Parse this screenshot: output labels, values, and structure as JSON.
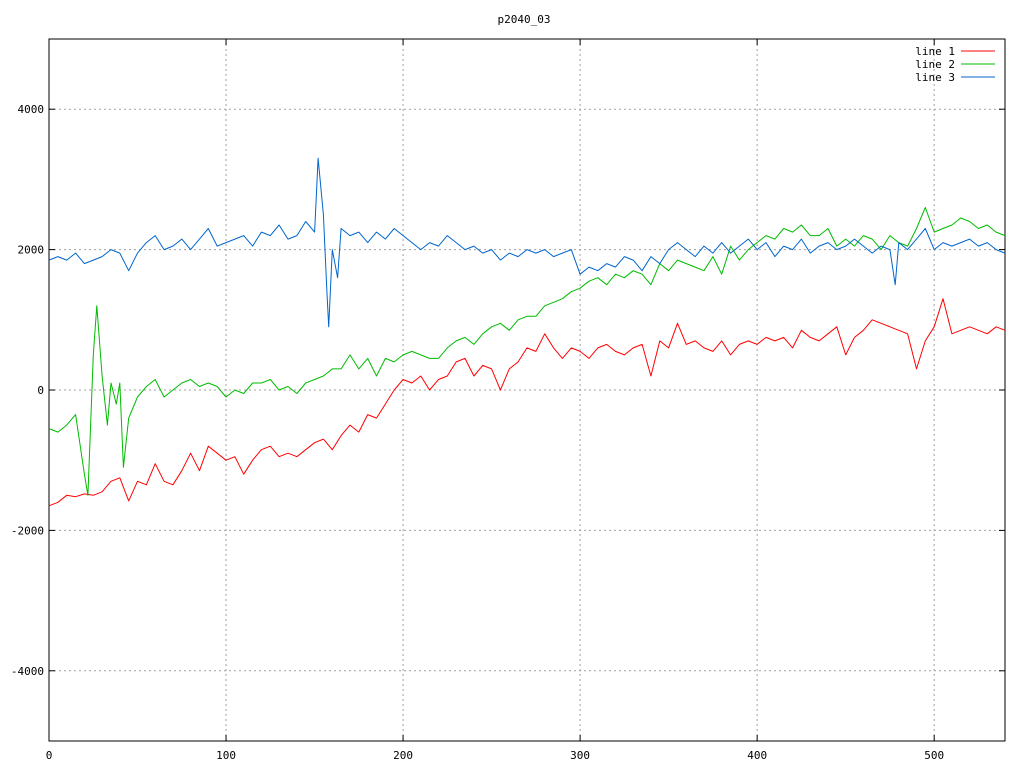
{
  "chart_data": {
    "type": "line",
    "title": "p2040_03",
    "xlabel": "",
    "ylabel": "",
    "xlim": [
      0,
      540
    ],
    "ylim": [
      -5000,
      5000
    ],
    "grid": true,
    "legend_placement": "top-right",
    "x_ticks": [
      0,
      100,
      200,
      300,
      400,
      500
    ],
    "y_ticks": [
      -4000,
      -2000,
      0,
      2000,
      4000
    ],
    "x_tick_labels": [
      "0",
      "100",
      "200",
      "300",
      "400",
      "500"
    ],
    "y_tick_labels": [
      "-4000",
      "-2000",
      "0",
      "2000",
      "4000"
    ],
    "series": [
      {
        "name": "line 1",
        "color": "#ff0000",
        "x": [
          0,
          5,
          10,
          15,
          20,
          25,
          30,
          35,
          40,
          45,
          50,
          55,
          60,
          65,
          70,
          75,
          80,
          85,
          90,
          95,
          100,
          105,
          110,
          115,
          120,
          125,
          130,
          135,
          140,
          145,
          150,
          155,
          160,
          165,
          170,
          175,
          180,
          185,
          190,
          195,
          200,
          205,
          210,
          215,
          220,
          225,
          230,
          235,
          240,
          245,
          250,
          255,
          260,
          265,
          270,
          275,
          280,
          285,
          290,
          295,
          300,
          305,
          310,
          315,
          320,
          325,
          330,
          335,
          340,
          345,
          350,
          355,
          360,
          365,
          370,
          375,
          380,
          385,
          390,
          395,
          400,
          405,
          410,
          415,
          420,
          425,
          430,
          435,
          440,
          445,
          450,
          455,
          460,
          465,
          470,
          475,
          480,
          485,
          490,
          495,
          500,
          505,
          510,
          515,
          520,
          525,
          530,
          535,
          540
        ],
        "y": [
          -1650,
          -1600,
          -1500,
          -1520,
          -1480,
          -1500,
          -1450,
          -1300,
          -1250,
          -1580,
          -1300,
          -1350,
          -1050,
          -1300,
          -1350,
          -1150,
          -900,
          -1150,
          -800,
          -900,
          -1000,
          -950,
          -1200,
          -1000,
          -850,
          -800,
          -950,
          -900,
          -950,
          -850,
          -750,
          -700,
          -850,
          -650,
          -500,
          -600,
          -350,
          -400,
          -200,
          0,
          150,
          100,
          200,
          0,
          150,
          200,
          400,
          450,
          200,
          350,
          300,
          0,
          300,
          400,
          600,
          550,
          800,
          600,
          450,
          600,
          550,
          450,
          600,
          650,
          550,
          500,
          600,
          650,
          200,
          700,
          600,
          950,
          650,
          700,
          600,
          550,
          700,
          500,
          650,
          700,
          650,
          750,
          700,
          750,
          600,
          850,
          750,
          700,
          800,
          900,
          500,
          750,
          850,
          1000,
          950,
          900,
          850,
          800,
          300,
          700,
          900,
          1300,
          800,
          850,
          900,
          850,
          800,
          900,
          850
        ]
      },
      {
        "name": "line 2",
        "color": "#00bb00",
        "x": [
          0,
          5,
          10,
          15,
          20,
          22,
          25,
          27,
          30,
          33,
          35,
          38,
          40,
          42,
          45,
          50,
          55,
          60,
          65,
          70,
          75,
          80,
          85,
          90,
          95,
          100,
          105,
          110,
          115,
          120,
          125,
          130,
          135,
          140,
          145,
          150,
          155,
          160,
          165,
          170,
          175,
          180,
          185,
          190,
          195,
          200,
          205,
          210,
          215,
          220,
          225,
          230,
          235,
          240,
          245,
          250,
          255,
          260,
          265,
          270,
          275,
          280,
          285,
          290,
          295,
          300,
          305,
          310,
          315,
          320,
          325,
          330,
          335,
          340,
          345,
          350,
          355,
          360,
          365,
          370,
          375,
          380,
          385,
          390,
          395,
          400,
          405,
          410,
          415,
          420,
          425,
          430,
          435,
          440,
          445,
          450,
          455,
          460,
          465,
          470,
          475,
          480,
          485,
          490,
          495,
          500,
          505,
          510,
          515,
          520,
          525,
          530,
          535,
          540
        ],
        "y": [
          -550,
          -600,
          -500,
          -350,
          -1200,
          -1500,
          500,
          1200,
          200,
          -500,
          100,
          -200,
          100,
          -1100,
          -400,
          -100,
          50,
          150,
          -100,
          0,
          100,
          150,
          50,
          100,
          50,
          -100,
          0,
          -50,
          100,
          100,
          150,
          0,
          50,
          -50,
          100,
          150,
          200,
          300,
          300,
          500,
          300,
          450,
          200,
          450,
          400,
          500,
          550,
          500,
          450,
          450,
          600,
          700,
          750,
          650,
          800,
          900,
          950,
          850,
          1000,
          1050,
          1050,
          1200,
          1250,
          1300,
          1400,
          1450,
          1550,
          1600,
          1500,
          1650,
          1600,
          1700,
          1650,
          1500,
          1800,
          1700,
          1850,
          1800,
          1750,
          1700,
          1900,
          1650,
          2050,
          1850,
          2000,
          2100,
          2200,
          2150,
          2300,
          2250,
          2350,
          2200,
          2200,
          2300,
          2050,
          2150,
          2050,
          2200,
          2150,
          2000,
          2200,
          2100,
          2050,
          2300,
          2600,
          2250,
          2300,
          2350,
          2450,
          2400,
          2300,
          2350,
          2250,
          2200
        ]
      },
      {
        "name": "line 3",
        "color": "#0066cc",
        "x": [
          0,
          5,
          10,
          15,
          20,
          25,
          30,
          35,
          40,
          45,
          50,
          55,
          60,
          65,
          70,
          75,
          80,
          85,
          90,
          95,
          100,
          105,
          110,
          115,
          120,
          125,
          130,
          135,
          140,
          145,
          150,
          152,
          155,
          157,
          158,
          160,
          163,
          165,
          170,
          175,
          180,
          185,
          190,
          195,
          200,
          205,
          210,
          215,
          220,
          225,
          230,
          235,
          240,
          245,
          250,
          255,
          260,
          265,
          270,
          275,
          280,
          285,
          290,
          295,
          300,
          305,
          310,
          315,
          320,
          325,
          330,
          335,
          340,
          345,
          350,
          355,
          360,
          365,
          370,
          375,
          380,
          385,
          390,
          395,
          400,
          405,
          410,
          415,
          420,
          425,
          430,
          435,
          440,
          445,
          450,
          455,
          460,
          465,
          470,
          475,
          478,
          480,
          485,
          490,
          495,
          500,
          505,
          510,
          515,
          520,
          525,
          530,
          535,
          540
        ],
        "y": [
          1850,
          1900,
          1850,
          1950,
          1800,
          1850,
          1900,
          2000,
          1950,
          1700,
          1950,
          2100,
          2200,
          2000,
          2050,
          2150,
          2000,
          2150,
          2300,
          2050,
          2100,
          2150,
          2200,
          2050,
          2250,
          2200,
          2350,
          2150,
          2200,
          2400,
          2250,
          3300,
          2500,
          1400,
          900,
          2000,
          1600,
          2300,
          2200,
          2250,
          2100,
          2250,
          2150,
          2300,
          2200,
          2100,
          2000,
          2100,
          2050,
          2200,
          2100,
          2000,
          2050,
          1950,
          2000,
          1850,
          1950,
          1900,
          2000,
          1950,
          2000,
          1900,
          1950,
          2000,
          1650,
          1750,
          1700,
          1800,
          1750,
          1900,
          1850,
          1700,
          1900,
          1800,
          2000,
          2100,
          2000,
          1900,
          2050,
          1950,
          2100,
          1950,
          2050,
          2150,
          2000,
          2100,
          1900,
          2050,
          2000,
          2150,
          1950,
          2050,
          2100,
          2000,
          2050,
          2150,
          2050,
          1950,
          2050,
          2000,
          1500,
          2100,
          2000,
          2150,
          2300,
          2000,
          2100,
          2050,
          2100,
          2150,
          2050,
          2100,
          2000,
          1950
        ]
      }
    ]
  }
}
